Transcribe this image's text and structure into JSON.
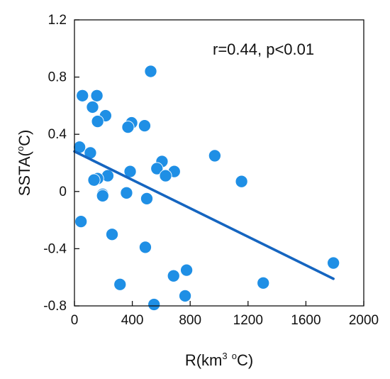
{
  "chart_data": {
    "type": "scatter",
    "title": "",
    "xlabel": {
      "pre": "R(km",
      "sup1": "3",
      "mid": " ",
      "sup2": "o",
      "post": "C)"
    },
    "ylabel": {
      "pre": "SSTA(",
      "sup": "o",
      "post": "C)"
    },
    "annotation": "r=0.44, p<0.01",
    "xlim": [
      0,
      2000
    ],
    "ylim": [
      -0.8,
      1.2
    ],
    "xticks": [
      0,
      400,
      800,
      1200,
      1600,
      2000
    ],
    "xtick_labels": [
      "0",
      "400",
      "800",
      "1200",
      "1600",
      "2000"
    ],
    "yticks": [
      -0.8,
      -0.4,
      0,
      0.4,
      0.8,
      1.2
    ],
    "ytick_labels": [
      "-0.8",
      "-0.4",
      "0",
      "0.4",
      "0.8",
      "1.2"
    ],
    "grid": false,
    "series": [
      {
        "marker_color": "#1f8fe5",
        "points": [
          {
            "x": 527,
            "y": 0.84
          },
          {
            "x": 55,
            "y": 0.67
          },
          {
            "x": 155,
            "y": 0.67
          },
          {
            "x": 125,
            "y": 0.59
          },
          {
            "x": 215,
            "y": 0.53
          },
          {
            "x": 160,
            "y": 0.49
          },
          {
            "x": 395,
            "y": 0.48
          },
          {
            "x": 370,
            "y": 0.45
          },
          {
            "x": 485,
            "y": 0.46
          },
          {
            "x": 35,
            "y": 0.31
          },
          {
            "x": 110,
            "y": 0.27
          },
          {
            "x": 970,
            "y": 0.25
          },
          {
            "x": 605,
            "y": 0.21
          },
          {
            "x": 570,
            "y": 0.16
          },
          {
            "x": 690,
            "y": 0.14
          },
          {
            "x": 385,
            "y": 0.14
          },
          {
            "x": 630,
            "y": 0.11
          },
          {
            "x": 230,
            "y": 0.11
          },
          {
            "x": 160,
            "y": 0.09
          },
          {
            "x": 135,
            "y": 0.08
          },
          {
            "x": 1155,
            "y": 0.07
          },
          {
            "x": 360,
            "y": -0.01
          },
          {
            "x": 195,
            "y": -0.02
          },
          {
            "x": 195,
            "y": -0.03
          },
          {
            "x": 500,
            "y": -0.05
          },
          {
            "x": 45,
            "y": -0.21
          },
          {
            "x": 260,
            "y": -0.3
          },
          {
            "x": 490,
            "y": -0.39
          },
          {
            "x": 1790,
            "y": -0.5
          },
          {
            "x": 775,
            "y": -0.55
          },
          {
            "x": 685,
            "y": -0.59
          },
          {
            "x": 315,
            "y": -0.65
          },
          {
            "x": 1305,
            "y": -0.64
          },
          {
            "x": 765,
            "y": -0.73
          },
          {
            "x": 550,
            "y": -0.79
          }
        ]
      }
    ],
    "trendline": {
      "color": "#1565c0",
      "x": [
        0,
        1790
      ],
      "y": [
        0.28,
        -0.61
      ]
    }
  }
}
